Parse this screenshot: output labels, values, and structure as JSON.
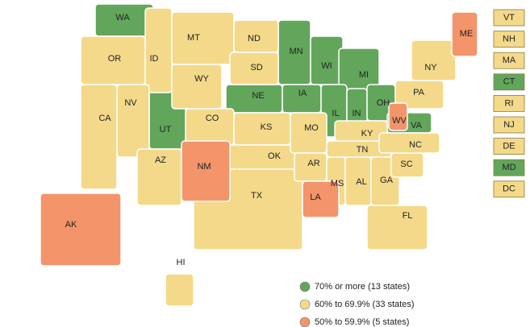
{
  "legend": [
    {
      "label": "70% or more (13 states)",
      "color": "#62a65c",
      "states": [
        "WA",
        "MN",
        "WI",
        "MI",
        "UT",
        "NE",
        "IA",
        "IL",
        "IN",
        "OH",
        "VA",
        "CT",
        "MD"
      ]
    },
    {
      "label": "60% to 69.9% (33 states)",
      "color": "#f4d98a",
      "states": [
        "OR",
        "ID",
        "MT",
        "WY",
        "NV",
        "CA",
        "AZ",
        "CO",
        "ND",
        "SD",
        "KS",
        "OK",
        "TX",
        "MO",
        "AR",
        "MS",
        "AL",
        "TN",
        "KY",
        "GA",
        "FL",
        "SC",
        "NC",
        "PA",
        "NY",
        "VT",
        "NH",
        "MA",
        "RI",
        "NJ",
        "DE",
        "DC",
        "HI"
      ]
    },
    {
      "label": "50% to 59.9% (5 states)",
      "color": "#f3946a",
      "states": [
        "ME",
        "WV",
        "NM",
        "LA",
        "AK"
      ]
    }
  ]
}
